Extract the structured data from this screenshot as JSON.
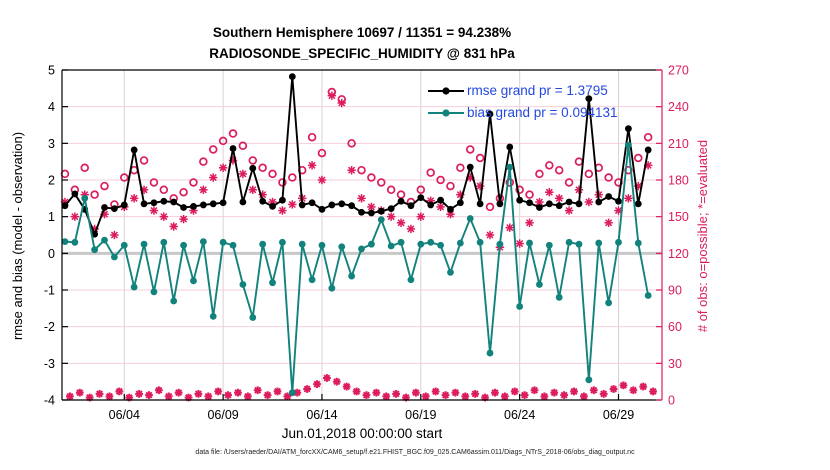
{
  "title": {
    "line1": "Southern Hemisphere 10697 / 11351 = 94.238%",
    "line2": "RADIOSONDE_SPECIFIC_HUMIDITY @ 831 hPa"
  },
  "axes": {
    "left_label": "rmse and bias (model - observation)",
    "right_label": "# of obs: o=possible; *=evaluated",
    "x_label": "Jun.01,2018 00:00:00 start"
  },
  "legend": {
    "rmse_label": "rmse grand pr = 1.3795",
    "bias_label": "bias grand pr = 0.094131"
  },
  "footer": {
    "datafile": "data file: /Users/raeder/DAI/ATM_forcXX/CAM6_setup/f.e21.FHIST_BGC.f09_025.CAM6assim.011/Diags_NTrS_2018-06/obs_diag_output.nc"
  },
  "colors": {
    "rmse": "#000000",
    "bias": "#12827c",
    "counts": "#dc1c5c",
    "legend_text": "#2347e0",
    "grid_h": "#f5cfdc",
    "grid_v": "#d9d2d4",
    "zero_line": "#c8c8c8",
    "axis_black": "#000000"
  },
  "chart_data": {
    "type": "line",
    "title": "RADIOSONDE_SPECIFIC_HUMIDITY @ 831 hPa, Southern Hemisphere",
    "xlabel": "Jun.01,2018 00:00:00 start",
    "ylabel_left": "rmse and bias (model - observation)",
    "ylabel_right": "# of obs: o=possible; *=evaluated",
    "xlim": [
      0.85,
      31.2
    ],
    "ylim_left": [
      -4,
      5
    ],
    "ylim_right": [
      0,
      270
    ],
    "grid": true,
    "legend_position": "top-right-inside",
    "xtick_days": [
      4,
      9,
      14,
      19,
      24,
      29
    ],
    "xtick_labels": [
      "06/04",
      "06/09",
      "06/14",
      "06/19",
      "06/24",
      "06/29"
    ],
    "ytick_left": [
      -4,
      -3,
      -2,
      -1,
      0,
      1,
      2,
      3,
      4,
      5
    ],
    "ytick_left_labels": [
      "-4",
      "-3",
      "-2",
      "-1",
      "0",
      "1",
      "2",
      "3",
      "4",
      "5"
    ],
    "ytick_right": [
      0,
      30,
      60,
      90,
      120,
      150,
      180,
      210,
      240,
      270
    ],
    "ytick_right_labels": [
      "0",
      "30",
      "60",
      "90",
      "120",
      "150",
      "180",
      "210",
      "240",
      "270"
    ],
    "x": [
      1,
      1.5,
      2,
      2.5,
      3,
      3.5,
      4,
      4.5,
      5,
      5.5,
      6,
      6.5,
      7,
      7.5,
      8,
      8.5,
      9,
      9.5,
      10,
      10.5,
      11,
      11.5,
      12,
      12.5,
      13,
      13.5,
      14,
      14.5,
      15,
      15.5,
      16,
      16.5,
      17,
      17.5,
      18,
      18.5,
      19,
      19.5,
      20,
      20.5,
      21,
      21.5,
      22,
      22.5,
      23,
      23.5,
      24,
      24.5,
      25,
      25.5,
      26,
      26.5,
      27,
      27.5,
      28,
      28.5,
      29,
      29.5,
      30,
      30.5
    ],
    "series": [
      {
        "name": "rmse",
        "grand_value": 1.3795,
        "axis": "left",
        "marker": "filled-circle",
        "values": [
          1.3,
          1.62,
          1.2,
          0.52,
          1.25,
          1.22,
          1.32,
          2.82,
          1.35,
          1.38,
          1.42,
          1.4,
          1.25,
          1.28,
          1.32,
          1.35,
          1.38,
          2.86,
          1.4,
          2.32,
          1.42,
          1.28,
          1.45,
          4.82,
          1.32,
          1.38,
          1.2,
          1.32,
          1.35,
          1.3,
          1.12,
          1.1,
          1.15,
          1.22,
          1.42,
          1.3,
          1.52,
          1.32,
          1.45,
          1.2,
          1.38,
          2.35,
          1.35,
          3.8,
          1.35,
          2.9,
          1.45,
          1.38,
          1.25,
          1.35,
          1.3,
          1.4,
          1.35,
          4.22,
          1.4,
          1.55,
          1.42,
          3.4,
          1.35,
          2.82
        ]
      },
      {
        "name": "bias",
        "grand_value": 0.094131,
        "axis": "left",
        "marker": "filled-circle",
        "values": [
          0.32,
          0.3,
          1.5,
          0.1,
          0.36,
          -0.1,
          0.22,
          -0.92,
          0.25,
          -1.05,
          0.3,
          -1.3,
          0.22,
          -0.75,
          0.32,
          -1.72,
          0.3,
          0.22,
          -0.85,
          -1.75,
          0.25,
          -0.8,
          0.3,
          -3.8,
          0.25,
          -0.72,
          0.22,
          -0.95,
          0.18,
          -0.62,
          0.12,
          0.25,
          0.92,
          0.2,
          0.3,
          -0.72,
          0.25,
          0.3,
          0.22,
          -0.52,
          0.28,
          0.95,
          0.3,
          -2.72,
          0.25,
          2.35,
          -1.45,
          0.28,
          -0.85,
          0.22,
          -1.2,
          0.3,
          0.25,
          -3.45,
          0.28,
          -1.35,
          0.3,
          2.95,
          0.28,
          -1.15
        ]
      },
      {
        "name": "possible_obs",
        "axis": "right",
        "marker": "open-circle",
        "values": [
          185,
          172,
          190,
          168,
          175,
          160,
          182,
          188,
          196,
          178,
          172,
          165,
          170,
          178,
          195,
          205,
          212,
          218,
          208,
          196,
          190,
          185,
          178,
          182,
          188,
          215,
          202,
          252,
          246,
          210,
          188,
          182,
          178,
          172,
          168,
          162,
          172,
          186,
          180,
          175,
          190,
          205,
          198,
          158,
          165,
          178,
          172,
          168,
          185,
          192,
          188,
          178,
          195,
          185,
          190,
          182,
          178,
          188,
          198,
          215
        ]
      },
      {
        "name": "evaluated_obs",
        "axis": "right",
        "marker": "asterisk",
        "values": [
          162,
          150,
          168,
          140,
          152,
          135,
          158,
          165,
          172,
          155,
          150,
          142,
          148,
          155,
          172,
          182,
          190,
          196,
          185,
          172,
          168,
          162,
          155,
          160,
          165,
          192,
          180,
          249,
          243,
          188,
          165,
          158,
          155,
          150,
          145,
          140,
          150,
          163,
          158,
          152,
          168,
          182,
          175,
          135,
          125,
          141,
          128,
          145,
          162,
          170,
          165,
          155,
          172,
          162,
          168,
          145,
          155,
          165,
          175,
          192
        ]
      },
      {
        "name": "offhour_obs_counts",
        "axis": "right",
        "marker": "asterisk-circle-blob",
        "values": [
          3,
          6,
          2,
          5,
          3,
          7,
          2,
          5,
          4,
          8,
          3,
          6,
          2,
          5,
          3,
          7,
          4,
          6,
          3,
          8,
          4,
          7,
          3,
          6,
          9,
          13,
          18,
          15,
          11,
          7,
          4,
          6,
          3,
          5,
          2,
          6,
          3,
          7,
          4,
          6,
          3,
          5,
          2,
          6,
          3,
          7,
          4,
          8,
          3,
          6,
          4,
          7,
          3,
          8,
          5,
          9,
          12,
          8,
          11,
          7
        ]
      }
    ]
  }
}
